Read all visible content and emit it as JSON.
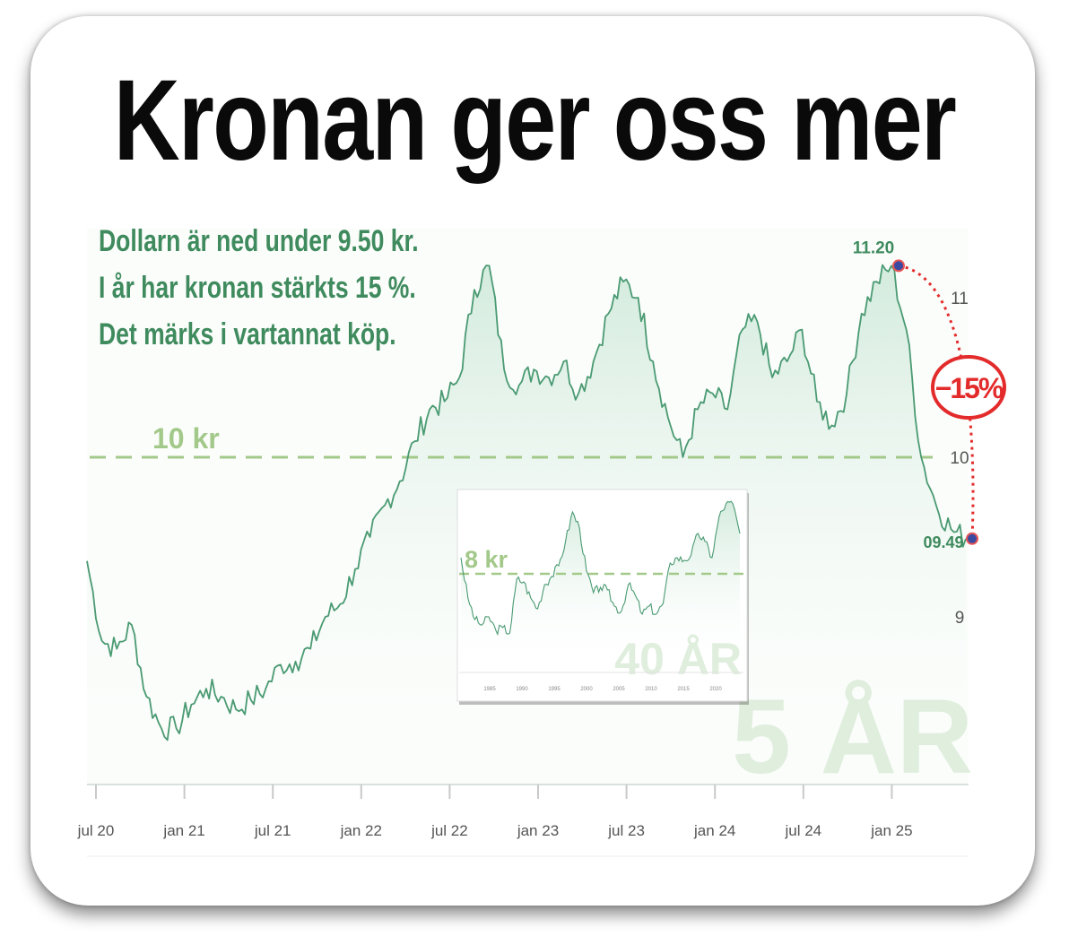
{
  "title": "Kronan ger oss mer",
  "subtitle_lines": [
    "Dollarn är ned under 9.50 kr.",
    "I år har kronan stärkts 15 %.",
    "Det märks i vartannat köp."
  ],
  "colors": {
    "line": "#4a9a72",
    "fill": "#e4f3ea",
    "ref_line": "#a3c98a",
    "accent_red": "#e32b2b",
    "marker": "#3a4aa0",
    "watermark": "#dfeedd",
    "label_green": "#3f8b5e"
  },
  "chart_data": [
    {
      "type": "area",
      "title": "",
      "watermark": "5 ÅR",
      "x_ticks": [
        "jul 20",
        "jan 21",
        "jul 21",
        "jan 22",
        "jul 22",
        "jan 23",
        "jul 23",
        "jan 24",
        "jul 24",
        "jan 25"
      ],
      "y_ticks": [
        "9",
        "10",
        "11"
      ],
      "ylim": [
        8.2,
        11.35
      ],
      "reference_line": {
        "value": 10,
        "label": "10 kr"
      },
      "annotations": {
        "high_label": "11.20",
        "low_label": "09.49",
        "change_label": "−15%"
      },
      "series": [
        {
          "x": [
            "2020-07",
            "2020-08",
            "2020-09",
            "2020-10",
            "2020-11",
            "2020-12",
            "2021-01",
            "2021-02",
            "2021-03",
            "2021-04",
            "2021-05",
            "2021-06",
            "2021-07",
            "2021-08",
            "2021-09",
            "2021-10",
            "2021-11",
            "2021-12",
            "2022-01",
            "2022-02",
            "2022-03",
            "2022-04",
            "2022-05",
            "2022-06",
            "2022-07",
            "2022-08",
            "2022-09",
            "2022-10",
            "2022-11",
            "2022-12",
            "2023-01",
            "2023-02",
            "2023-03",
            "2023-04",
            "2023-05",
            "2023-06",
            "2023-07",
            "2023-08",
            "2023-09",
            "2023-10",
            "2023-11",
            "2023-12",
            "2024-01",
            "2024-02",
            "2024-03",
            "2024-04",
            "2024-05",
            "2024-06",
            "2024-07",
            "2024-08",
            "2024-09",
            "2024-10",
            "2024-11",
            "2024-12",
            "2025-01",
            "2025-02",
            "2025-03",
            "2025-04",
            "2025-05",
            "2025-06"
          ],
          "values": [
            9.35,
            8.85,
            8.8,
            8.95,
            8.5,
            8.3,
            8.3,
            8.45,
            8.55,
            8.5,
            8.42,
            8.48,
            8.55,
            8.7,
            8.72,
            8.8,
            9.0,
            9.08,
            9.3,
            9.5,
            9.7,
            9.85,
            10.1,
            10.3,
            10.35,
            10.5,
            11.05,
            11.2,
            10.55,
            10.45,
            10.55,
            10.5,
            10.6,
            10.4,
            10.6,
            10.9,
            11.1,
            11.0,
            10.6,
            10.25,
            10.0,
            10.3,
            10.4,
            10.3,
            10.8,
            10.85,
            10.5,
            10.6,
            10.8,
            10.35,
            10.2,
            10.4,
            10.9,
            11.1,
            11.2,
            10.8,
            10.0,
            9.7,
            9.55,
            9.49
          ]
        }
      ]
    },
    {
      "type": "area",
      "title": "",
      "watermark": "40 ÅR",
      "x_ticks": [
        "1985",
        "1990",
        "1995",
        "2000",
        "2005",
        "2010",
        "2015",
        "2020"
      ],
      "reference_line": {
        "value": 8,
        "label": "8 kr"
      },
      "series": [
        {
          "x": [
            "1985",
            "1986",
            "1987",
            "1988",
            "1989",
            "1990",
            "1991",
            "1992",
            "1993",
            "1994",
            "1995",
            "1996",
            "1997",
            "1998",
            "1999",
            "2000",
            "2001",
            "2002",
            "2003",
            "2004",
            "2005",
            "2006",
            "2007",
            "2008",
            "2009",
            "2010",
            "2011",
            "2012",
            "2013",
            "2014",
            "2015",
            "2016",
            "2017",
            "2018",
            "2019",
            "2020",
            "2021",
            "2022",
            "2023",
            "2024",
            "2025"
          ],
          "values": [
            8.6,
            7.1,
            6.3,
            6.1,
            6.4,
            5.9,
            6.0,
            5.8,
            7.8,
            7.7,
            7.1,
            6.7,
            7.6,
            7.9,
            8.3,
            9.2,
            10.3,
            9.7,
            8.1,
            7.3,
            7.5,
            7.4,
            6.8,
            6.6,
            7.6,
            7.2,
            6.5,
            6.8,
            6.5,
            6.9,
            8.4,
            8.6,
            8.5,
            8.7,
            9.5,
            9.2,
            8.6,
            10.1,
            10.6,
            10.6,
            9.5
          ]
        }
      ]
    }
  ]
}
